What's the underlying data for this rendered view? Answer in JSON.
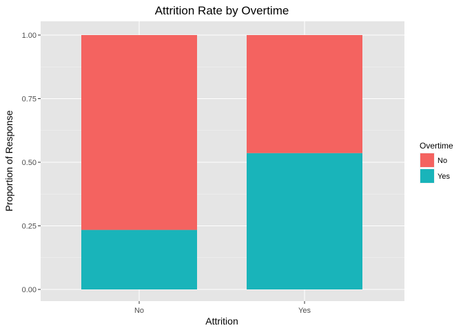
{
  "chart_data": {
    "type": "bar",
    "stacked": true,
    "title": "Attrition Rate by Overtime",
    "xlabel": "Attrition",
    "ylabel": "Proportion of Response",
    "categories": [
      "No",
      "Yes"
    ],
    "ylim": [
      0,
      1
    ],
    "yticks": [
      "0.00",
      "0.25",
      "0.50",
      "0.75",
      "1.00"
    ],
    "grid": true,
    "legend": {
      "title": "Overtime",
      "placement": "right"
    },
    "series": [
      {
        "name": "No",
        "color": "#F8766D",
        "values": [
          0.766,
          0.464
        ]
      },
      {
        "name": "Yes",
        "color": "#00BFC4",
        "values": [
          0.234,
          0.536
        ]
      }
    ],
    "colors": {
      "panel_background": "#E5E5E5",
      "grid_line": "#FFFFFF",
      "bar_no": "#F46360",
      "bar_yes": "#19B4BA"
    }
  }
}
